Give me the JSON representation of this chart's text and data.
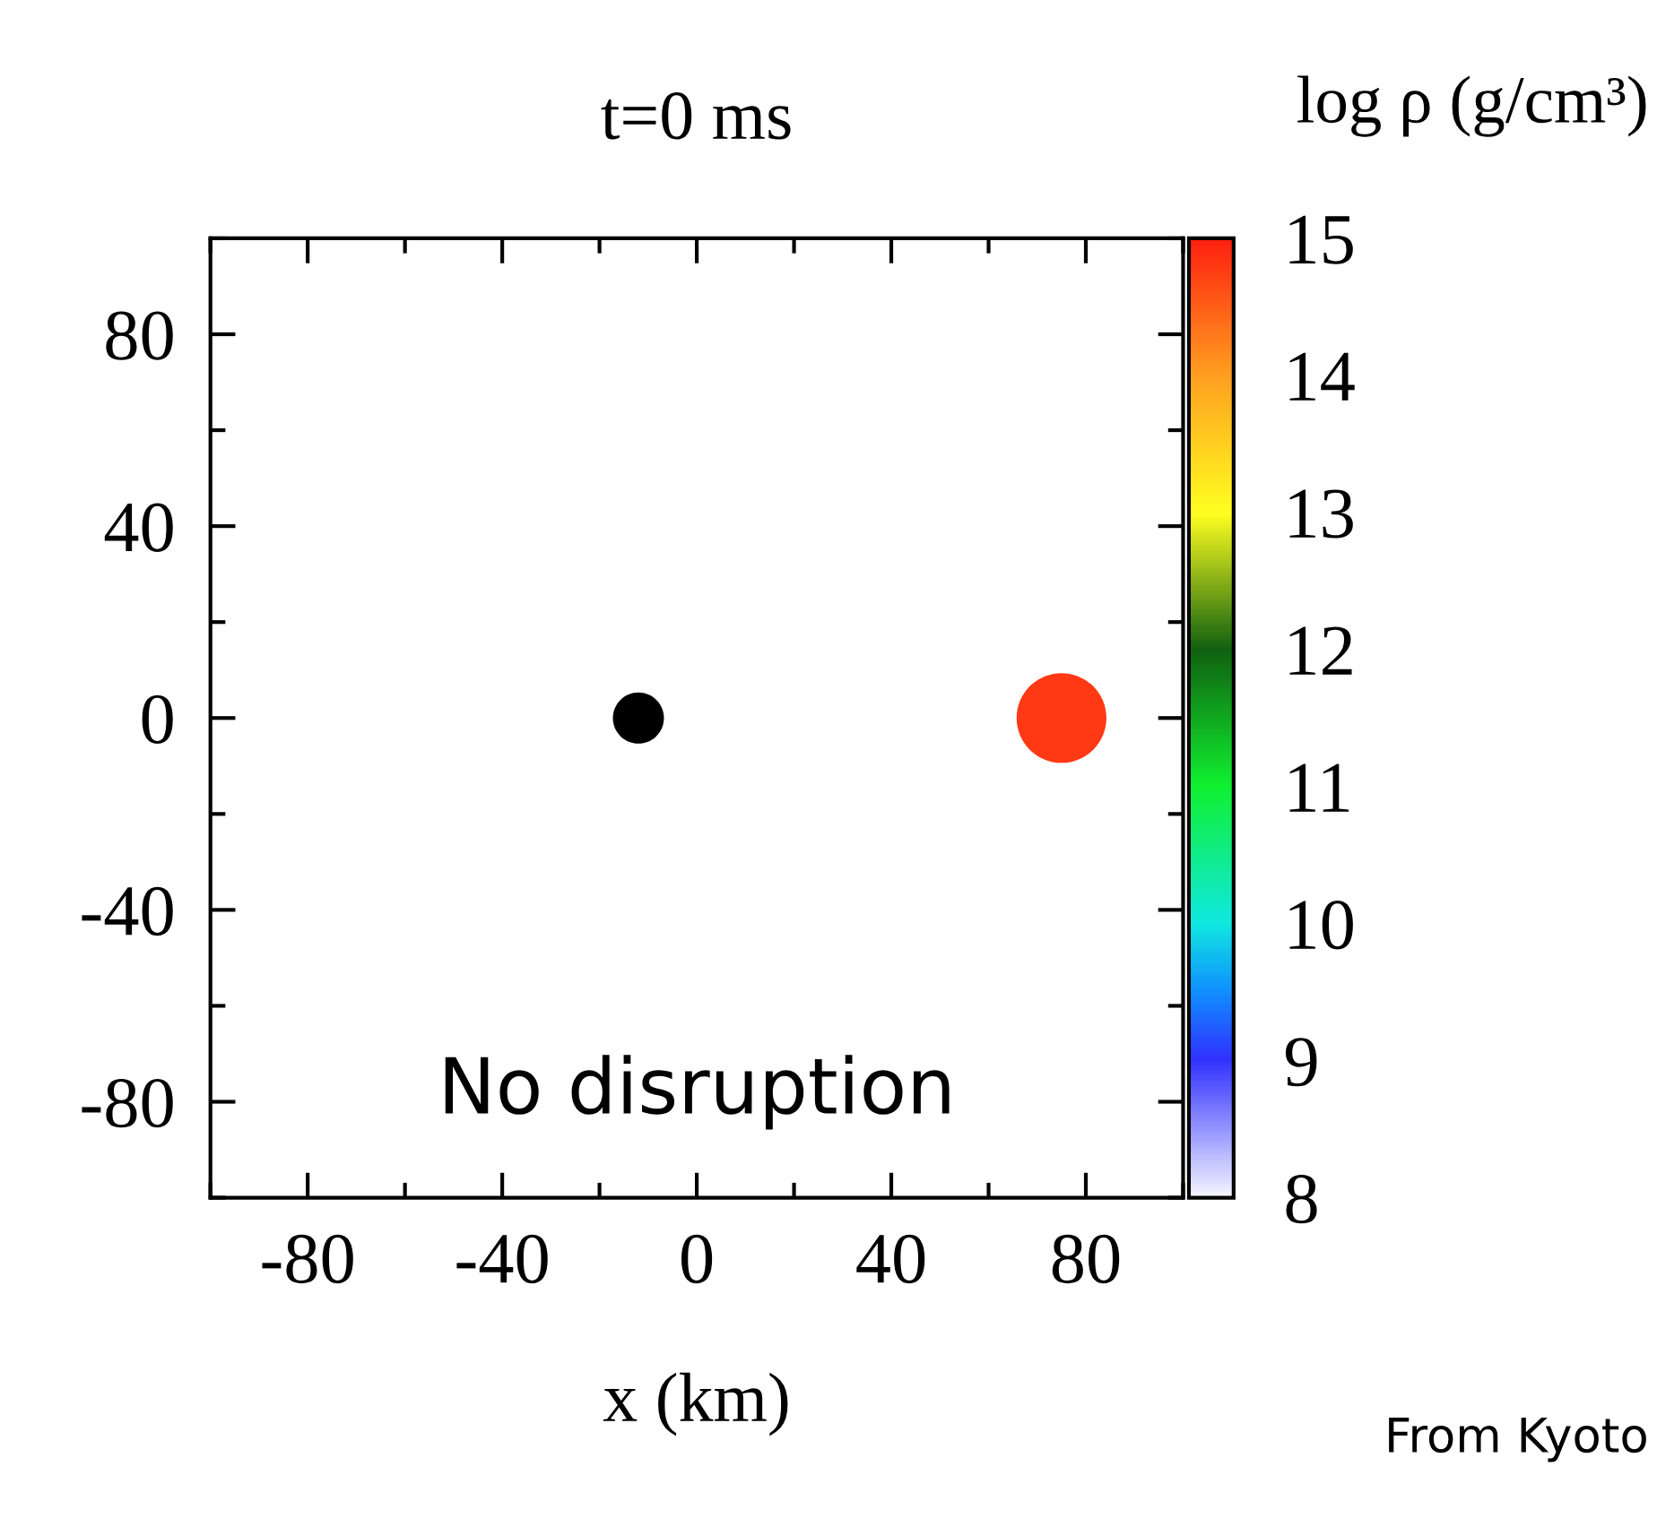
{
  "chart_data": {
    "type": "scatter",
    "title": "t=0 ms",
    "xlabel": "x (km)",
    "clabel": "log ρ (g/cm³)",
    "series": [
      {
        "color": "#000000",
        "x": [
          -12
        ],
        "values": [
          0
        ]
      },
      {
        "x": [
          75
        ],
        "values": [
          0
        ],
        "cvalues": [
          14.8
        ]
      }
    ],
    "xlim": [
      -100,
      100
    ],
    "ylim": [
      -100,
      100
    ],
    "xticks": [
      {
        "value": -100,
        "label": null
      },
      -80,
      {
        "value": -60,
        "label": null
      },
      -40,
      {
        "value": -20,
        "label": null
      },
      0,
      {
        "value": 20,
        "label": null
      },
      40,
      {
        "value": 60,
        "label": null
      },
      80,
      {
        "value": 100,
        "label": null
      }
    ],
    "yticks": [
      {
        "value": -100,
        "label": null
      },
      -80,
      {
        "value": -60,
        "label": null
      },
      -40,
      {
        "value": -20,
        "label": null
      },
      0,
      {
        "value": 20,
        "label": null
      },
      40,
      {
        "value": 60,
        "label": null
      },
      80,
      {
        "value": 100,
        "label": null
      }
    ],
    "clim": [
      8,
      15
    ],
    "cticks": [
      8,
      9,
      10,
      11,
      12,
      13,
      14,
      15
    ],
    "grid": false,
    "legend": false,
    "marker": "circle",
    "annotations": [
      "No disruption",
      "From Kyoto"
    ]
  }
}
